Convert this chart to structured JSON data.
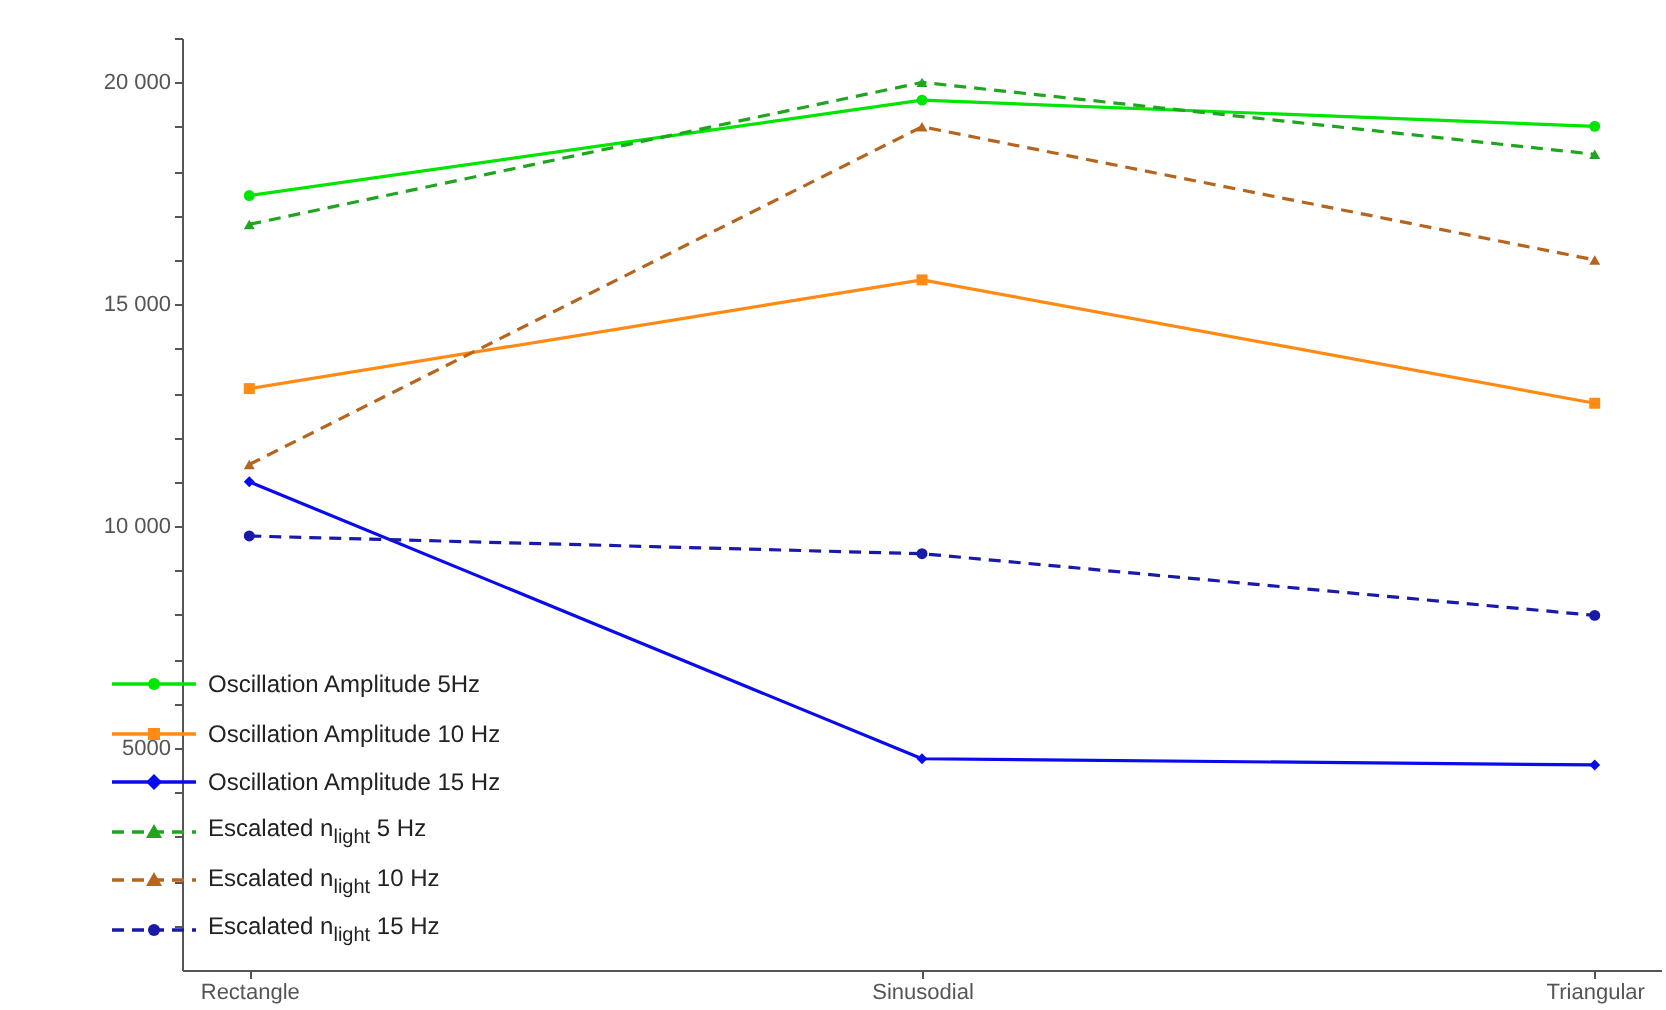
{
  "chart_data": {
    "type": "line",
    "categories": [
      "Rectangle",
      "Sinusodial",
      "Triangular"
    ],
    "ylim": [
      0,
      21000
    ],
    "yticks": [
      {
        "value": 1000,
        "label": null
      },
      {
        "value": 2000,
        "label": null
      },
      {
        "value": 3000,
        "label": null
      },
      {
        "value": 4000,
        "label": null
      },
      5000,
      {
        "value": 6000,
        "label": null
      },
      {
        "value": 7000,
        "label": null
      },
      {
        "value": 8000,
        "label": null
      },
      {
        "value": 9000,
        "label": null
      },
      {
        "value": 10000,
        "label": "10 000"
      },
      {
        "value": 11000,
        "label": null
      },
      {
        "value": 12000,
        "label": null
      },
      {
        "value": 13000,
        "label": null
      },
      {
        "value": 14000,
        "label": null
      },
      {
        "value": 15000,
        "label": "15 000"
      },
      {
        "value": 16000,
        "label": null
      },
      {
        "value": 17000,
        "label": null
      },
      {
        "value": 18000,
        "label": null
      },
      {
        "value": 19000,
        "label": null
      },
      {
        "value": 20000,
        "label": "20 000"
      },
      {
        "value": 21000,
        "label": null
      }
    ],
    "grid": false,
    "legend": "bottom left",
    "series": [
      {
        "name": "Oscillation Amplitude 5Hz",
        "color": "#00e600",
        "marker": "circle",
        "line_style": "solid",
        "values": [
          17450,
          19600,
          19010
        ]
      },
      {
        "name": "Oscillation Amplitude 10 Hz",
        "color": "#ff8a14",
        "marker": "square",
        "line_style": "solid",
        "values": [
          13100,
          15550,
          12770
        ]
      },
      {
        "name": "Oscillation Amplitude 15 Hz",
        "color": "#0a0af0",
        "marker": "diamond",
        "line_style": "solid",
        "values": [
          11000,
          4760,
          4620
        ]
      },
      {
        "name": "Escalated n$_{light}$ 5 Hz",
        "color": "#1fa51f",
        "marker": "triangle",
        "line_style": "dashed",
        "values": [
          16800,
          20000,
          18380
        ]
      },
      {
        "name": "Escalated n$_{light}$ 10 Hz",
        "color": "#b5651d",
        "marker": "triangle",
        "line_style": "dashed",
        "values": [
          11390,
          19000,
          16000
        ]
      },
      {
        "name": "Escalated n$_{light}$ 15 Hz",
        "color": "#1a1aa8",
        "marker": "circle",
        "line_style": "dashed",
        "values": [
          9780,
          9380,
          7990
        ]
      }
    ]
  }
}
